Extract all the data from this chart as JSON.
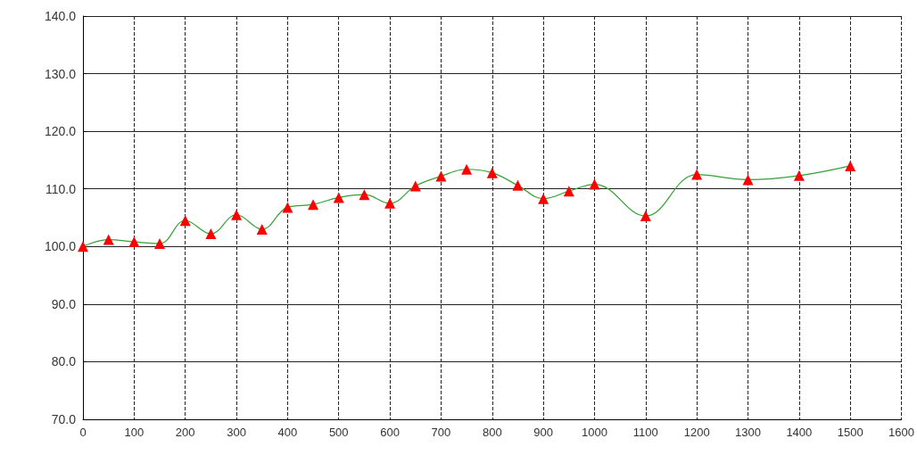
{
  "chart_data": {
    "type": "line",
    "x": [
      0,
      50,
      100,
      150,
      200,
      250,
      300,
      350,
      400,
      450,
      500,
      550,
      600,
      650,
      700,
      750,
      800,
      850,
      900,
      950,
      1000,
      1100,
      1200,
      1300,
      1400,
      1500
    ],
    "series": [
      {
        "color": "#33a033",
        "colors": [
          "#ff0000",
          "#ff0000",
          "#ff0000",
          "#ff0000",
          "#ff0000",
          "#ff0000",
          "#ff0000",
          "#ff0000",
          "#ff0000",
          "#ff0000",
          "#ff0000",
          "#ff0000",
          "#ff0000",
          "#ff0000",
          "#ff0000",
          "#ff0000",
          "#ff0000",
          "#ff0000",
          "#ff0000",
          "#ff0000",
          "#ff0000",
          "#ff0000",
          "#ff0000",
          "#ff0000",
          "#ff0000",
          "#ff0000"
        ],
        "values": [
          100.0,
          101.2,
          100.8,
          100.5,
          104.5,
          102.2,
          105.5,
          103.0,
          106.8,
          107.3,
          108.5,
          109.0,
          107.5,
          110.5,
          112.2,
          113.4,
          112.8,
          110.6,
          108.3,
          109.6,
          110.8,
          105.3,
          112.5,
          111.6,
          112.3,
          114.0
        ]
      }
    ],
    "xlim": [
      0,
      1600
    ],
    "xticks": [
      0,
      100,
      200,
      300,
      400,
      500,
      600,
      700,
      800,
      900,
      1000,
      1100,
      1200,
      1300,
      1400,
      1500,
      1600
    ],
    "ylim": [
      70,
      140
    ],
    "yticks": [
      {
        "value": 70,
        "label": "70.0"
      },
      {
        "value": 80,
        "label": "80.0"
      },
      {
        "value": 90,
        "label": "90.0"
      },
      {
        "value": 100,
        "label": "100.0"
      },
      {
        "value": 110,
        "label": "110.0"
      },
      {
        "value": 120,
        "label": "120.0"
      },
      {
        "value": 130,
        "label": "130.0"
      },
      {
        "value": 140,
        "label": "140.0"
      }
    ],
    "grid": true,
    "marker": "triangle"
  }
}
